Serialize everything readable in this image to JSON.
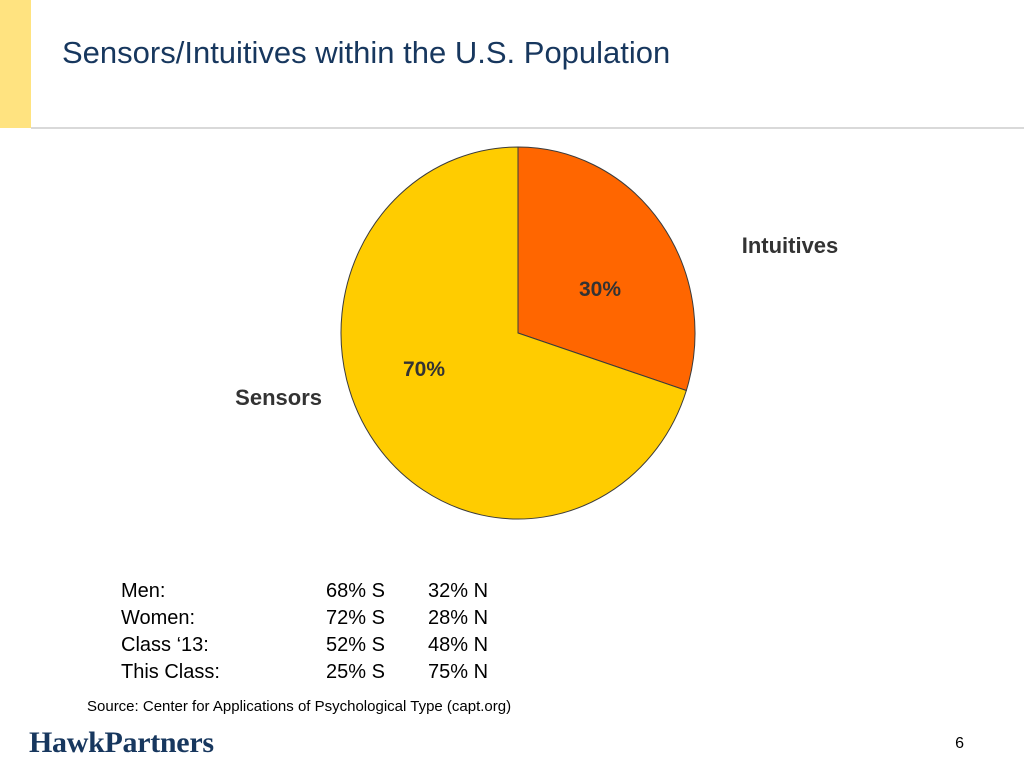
{
  "slide": {
    "title": "Sensors/Intuitives within the U.S. Population",
    "source": "Source:  Center for Applications of Psychological Type (capt.org)",
    "logo_text": "HawkPartners",
    "page_number": "6"
  },
  "chart_data": {
    "type": "pie",
    "title": "",
    "slices": [
      {
        "label": "Intuitives",
        "value": 30,
        "data_label": "30%",
        "color": "#FF6600"
      },
      {
        "label": "Sensors",
        "value": 70,
        "data_label": "70%",
        "color": "#FFCC00"
      }
    ],
    "start": "12 o'clock, clockwise",
    "legend": "none (category labels placed beside slices)"
  },
  "stats": {
    "rows": [
      {
        "group": "Men:",
        "s": "68% S",
        "n": "32% N"
      },
      {
        "group": "Women:",
        "s": "72% S",
        "n": "28% N"
      },
      {
        "group": "Class ‘13:",
        "s": "52% S",
        "n": "48% N"
      },
      {
        "group": "This Class:",
        "s": "25% S",
        "n": "75% N"
      }
    ]
  },
  "colors": {
    "title": "#17375E",
    "accent_bar": "#FFE380",
    "intuitives": "#FF6600",
    "sensors": "#FFCC00"
  }
}
